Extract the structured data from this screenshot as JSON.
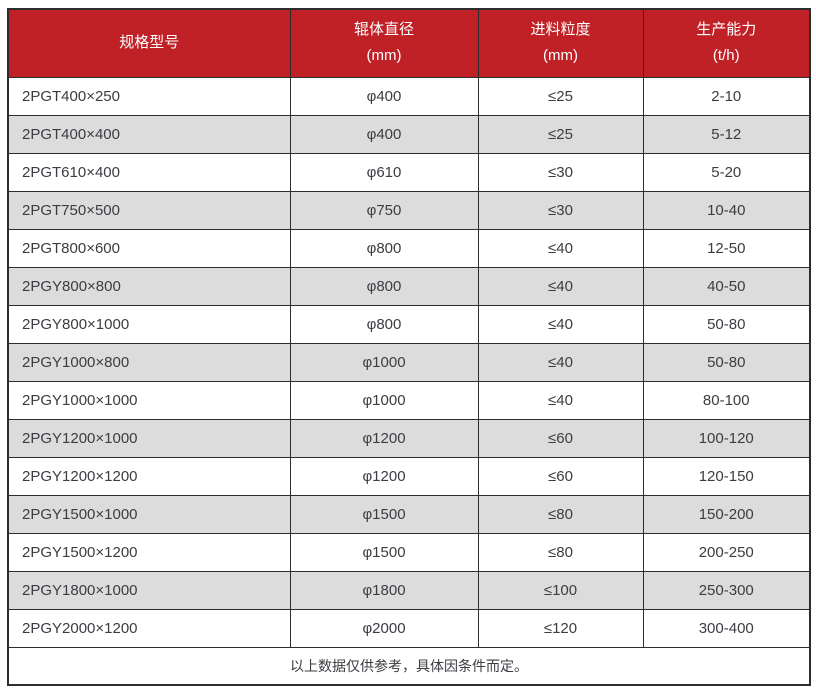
{
  "colors": {
    "header_bg": "#bf2126",
    "header_text": "#ffffff",
    "border": "#2d2d2d",
    "body_text": "#3c3c42",
    "row_bg": "#ffffff",
    "row_alt_bg": "#dcdcdc"
  },
  "chart_data": {
    "type": "table",
    "columns": [
      {
        "label": "规格型号",
        "unit": ""
      },
      {
        "label": "辊体直径",
        "unit": "(mm)"
      },
      {
        "label": "进料粒度",
        "unit": "(mm)"
      },
      {
        "label": "生产能力",
        "unit": "(t/h)"
      }
    ],
    "rows": [
      [
        "2PGT400×250",
        "φ400",
        "≤25",
        "2-10"
      ],
      [
        "2PGT400×400",
        "φ400",
        "≤25",
        "5-12"
      ],
      [
        "2PGT610×400",
        "φ610",
        "≤30",
        "5-20"
      ],
      [
        "2PGT750×500",
        "φ750",
        "≤30",
        "10-40"
      ],
      [
        "2PGT800×600",
        "φ800",
        "≤40",
        "12-50"
      ],
      [
        "2PGY800×800",
        "φ800",
        "≤40",
        "40-50"
      ],
      [
        "2PGY800×1000",
        "φ800",
        "≤40",
        "50-80"
      ],
      [
        "2PGY1000×800",
        "φ1000",
        "≤40",
        "50-80"
      ],
      [
        "2PGY1000×1000",
        "φ1000",
        "≤40",
        "80-100"
      ],
      [
        "2PGY1200×1000",
        "φ1200",
        "≤60",
        "100-120"
      ],
      [
        "2PGY1200×1200",
        "φ1200",
        "≤60",
        "120-150"
      ],
      [
        "2PGY1500×1000",
        "φ1500",
        "≤80",
        "150-200"
      ],
      [
        "2PGY1500×1200",
        "φ1500",
        "≤80",
        "200-250"
      ],
      [
        "2PGY1800×1000",
        "φ1800",
        "≤100",
        "250-300"
      ],
      [
        "2PGY2000×1200",
        "φ2000",
        "≤120",
        "300-400"
      ]
    ],
    "footnote": "以上数据仅供参考，具体因条件而定。",
    "legend_position": "none",
    "grid": true
  }
}
